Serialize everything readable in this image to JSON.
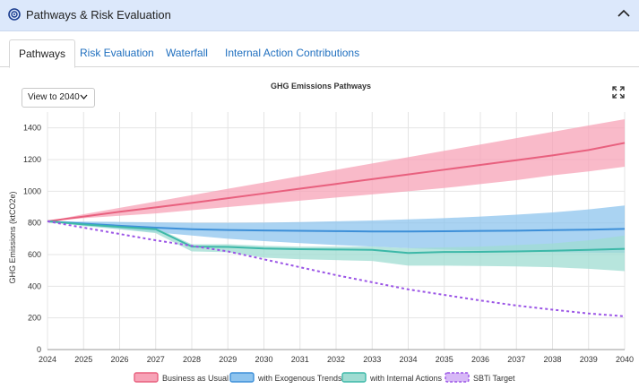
{
  "header": {
    "title": "Pathways & Risk Evaluation",
    "icon": "target-icon",
    "collapse_icon": "chevron-up-icon"
  },
  "tabs": [
    {
      "label": "Pathways",
      "active": true
    },
    {
      "label": "Risk Evaluation",
      "active": false
    },
    {
      "label": "Waterfall",
      "active": false
    },
    {
      "label": "Internal Action Contributions",
      "active": false
    }
  ],
  "view_select": {
    "value": "View to 2040"
  },
  "expand_icon": "expand-icon",
  "chart_data": {
    "type": "area",
    "title": "GHG Emissions Pathways",
    "xlabel": "",
    "ylabel": "GHG Emissions (ktCO2e)",
    "x": [
      2024,
      2025,
      2026,
      2027,
      2028,
      2029,
      2030,
      2031,
      2032,
      2033,
      2034,
      2035,
      2036,
      2037,
      2038,
      2039,
      2040
    ],
    "ylim": [
      0,
      1500
    ],
    "yticks": [
      0,
      200,
      400,
      600,
      800,
      1000,
      1200,
      1400
    ],
    "grid": true,
    "legend_position": "bottom",
    "series": [
      {
        "name": "Business as Usual",
        "color": "#e8607e",
        "fill": "#f7a3b7",
        "values": [
          810,
          840,
          870,
          898,
          926,
          956,
          986,
          1016,
          1046,
          1076,
          1106,
          1136,
          1166,
          1196,
          1226,
          1260,
          1305
        ],
        "upper": [
          810,
          855,
          895,
          935,
          975,
          1015,
          1055,
          1095,
          1135,
          1175,
          1215,
          1255,
          1295,
          1335,
          1375,
          1415,
          1455
        ],
        "lower": [
          810,
          830,
          845,
          860,
          880,
          900,
          920,
          940,
          960,
          980,
          1000,
          1020,
          1045,
          1070,
          1100,
          1125,
          1155
        ]
      },
      {
        "name": "with Exogenous Trends",
        "color": "#3d8fd8",
        "fill": "#8ec4ee",
        "values": [
          810,
          795,
          782,
          770,
          760,
          755,
          752,
          750,
          748,
          746,
          746,
          747,
          749,
          751,
          754,
          757,
          762
        ],
        "upper": [
          810,
          808,
          806,
          803,
          800,
          800,
          802,
          805,
          810,
          815,
          822,
          830,
          840,
          852,
          866,
          885,
          910
        ],
        "lower": [
          810,
          785,
          760,
          740,
          720,
          700,
          685,
          672,
          660,
          650,
          640,
          632,
          625,
          620,
          615,
          612,
          610
        ]
      },
      {
        "name": "with Internal Actions",
        "color": "#3db8a8",
        "fill": "#9fdcd2",
        "values": [
          810,
          790,
          775,
          760,
          650,
          648,
          638,
          634,
          632,
          630,
          610,
          616,
          617,
          620,
          624,
          630,
          636
        ],
        "upper": [
          810,
          795,
          785,
          770,
          665,
          665,
          655,
          650,
          650,
          650,
          640,
          645,
          650,
          660,
          670,
          690,
          720
        ],
        "lower": [
          810,
          780,
          760,
          735,
          620,
          615,
          580,
          570,
          565,
          560,
          530,
          530,
          528,
          525,
          520,
          510,
          495
        ]
      },
      {
        "name": "SBTi Target",
        "color": "#9b55e6",
        "dashed": true,
        "values": [
          810,
          770,
          730,
          690,
          655,
          620,
          570,
          520,
          470,
          425,
          380,
          345,
          310,
          278,
          252,
          228,
          210
        ]
      }
    ]
  }
}
